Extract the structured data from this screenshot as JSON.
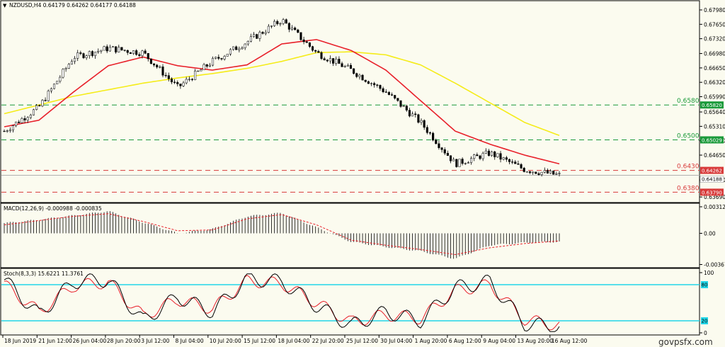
{
  "colors": {
    "background": "#fbfbef",
    "candle": "#000000",
    "ma_fast": "#e8202a",
    "ma_slow": "#f5ec1a",
    "level_green": "#1a9a3a",
    "level_red": "#d83a3a",
    "macd_signal": "#e8202a",
    "stoch_main": "#000000",
    "stoch_signal": "#e8202a",
    "stoch_levels": "#22d6e8",
    "bid_line": "#b0b0b0"
  },
  "header": {
    "title": "NZDUSD,H4  0.64179 0.64262 0.64177 0.64188"
  },
  "watermark": "govpsfx.com",
  "chart_data": [
    {
      "type": "candlestick",
      "symbol": "NZDUSD,H4",
      "ohlc": {
        "open": 0.64179,
        "high": 0.64262,
        "low": 0.64177,
        "close": 0.64188
      },
      "x": [
        "18 Jun 2019",
        "21 Jun 12:00",
        "26 Jun 04:00",
        "28 Jun 20:00",
        "3 Jul 12:00",
        "8 Jul 04:00",
        "10 Jul 20:00",
        "15 Jul 12:00",
        "18 Jul 04:00",
        "22 Jul 20:00",
        "25 Jul 12:00",
        "30 Jul 04:00",
        "1 Aug 20:00",
        "6 Aug 12:00",
        "9 Aug 04:00",
        "13 Aug 20:00",
        "16 Aug 12:00"
      ],
      "close": [
        0.652,
        0.6575,
        0.669,
        0.671,
        0.67,
        0.662,
        0.668,
        0.6725,
        0.6775,
        0.67,
        0.666,
        0.661,
        0.654,
        0.6445,
        0.647,
        0.6432,
        0.6419
      ],
      "ma_fast": [
        0.653,
        0.6545,
        0.661,
        0.667,
        0.669,
        0.667,
        0.666,
        0.6672,
        0.672,
        0.673,
        0.6705,
        0.666,
        0.659,
        0.652,
        0.649,
        0.6465,
        0.6445
      ],
      "ma_slow": [
        0.656,
        0.658,
        0.66,
        0.6615,
        0.663,
        0.6642,
        0.6652,
        0.6664,
        0.668,
        0.67,
        0.6702,
        0.6695,
        0.6672,
        0.663,
        0.6585,
        0.654,
        0.651
      ],
      "ylim": [
        0.6366,
        0.6798
      ],
      "yticks": [
        "0.67980",
        "0.67650",
        "0.67320",
        "0.66980",
        "0.66650",
        "0.66320",
        "0.65990",
        "0.65640",
        "0.65310",
        "0.64980",
        "0.64650",
        "0.64080",
        "0.63690"
      ],
      "levels": [
        {
          "label": "0.6580",
          "value": 0.658,
          "badge": "0.65820",
          "color": "green"
        },
        {
          "label": "0.6500",
          "value": 0.65,
          "badge": "0.65029",
          "color": "green"
        },
        {
          "label": "0.6430",
          "value": 0.643,
          "badge": "0.64262",
          "color": "red"
        },
        {
          "label": "0.6380",
          "value": 0.638,
          "badge": "0.63790",
          "color": "red"
        }
      ],
      "current_badge": "0.64188"
    },
    {
      "type": "bar",
      "title": "MACD(12,26,9) -0.000988 -0.000835",
      "values": [
        0.0012,
        0.0016,
        0.0021,
        0.0026,
        0.0013,
        0.0,
        0.0005,
        0.002,
        0.0024,
        0.0007,
        -0.001,
        -0.0016,
        -0.0021,
        -0.003,
        -0.0014,
        -0.0011,
        -0.001
      ],
      "signal": [
        0.001,
        0.0015,
        0.002,
        0.0023,
        0.0014,
        0.0003,
        0.0004,
        0.0017,
        0.0022,
        0.001,
        -0.0008,
        -0.0014,
        -0.0019,
        -0.0025,
        -0.0017,
        -0.0012,
        -0.0009
      ],
      "ylim": [
        -0.00371,
        0.00312
      ],
      "yticks": [
        "0.00312",
        "0.00",
        "-0.003671"
      ]
    },
    {
      "type": "line",
      "title": "Stoch(8,3,3) 15.6221 11.3761",
      "main": [
        88,
        30,
        85,
        88,
        20,
        60,
        35,
        90,
        85,
        45,
        12,
        35,
        20,
        75,
        85,
        15,
        10
      ],
      "signal": [
        80,
        35,
        78,
        84,
        28,
        55,
        40,
        86,
        82,
        50,
        18,
        30,
        24,
        70,
        80,
        22,
        12
      ],
      "ylim": [
        0,
        100
      ],
      "yticks": [
        "100",
        "0"
      ],
      "levels": [
        {
          "value": 80,
          "badge": "80"
        },
        {
          "value": 20,
          "badge": "20"
        }
      ]
    }
  ]
}
